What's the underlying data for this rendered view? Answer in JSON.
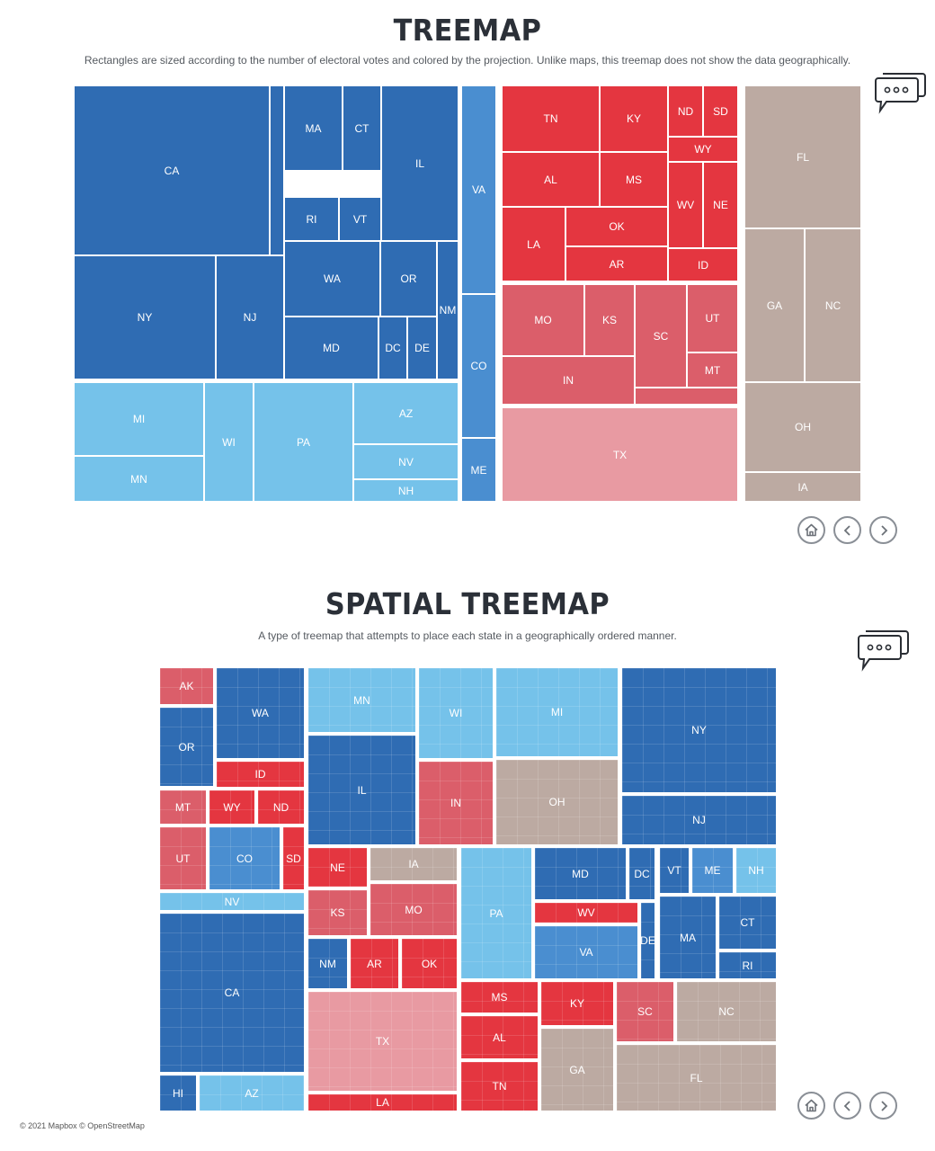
{
  "treemap": {
    "title": "TREEMAP",
    "subtitle": "Rectangles are sized according to the number of electoral votes and colored by the projection. Unlike maps, this treemap does not show the data geographically."
  },
  "spatial": {
    "title": "SPATIAL TREEMAP",
    "subtitle": "A type of treemap that attempts to place each state in a geographically ordered manner."
  },
  "footer": {
    "attribution": "© 2021 Mapbox © OpenStreetMap"
  },
  "icons": {
    "comment": "comment-bubbles-icon",
    "home": "home-icon",
    "prev": "chevron-left-icon",
    "next": "chevron-right-icon"
  },
  "colors": {
    "dark_blue": "#2f6cb3",
    "mid_blue": "#4a8ed0",
    "light_blue": "#75c2ea",
    "dark_red": "#e43640",
    "mid_red": "#db5e6a",
    "light_red": "#e89aa2",
    "tossup": "#bcaaa2"
  },
  "chart_data": [
    {
      "type": "treemap",
      "title": "TREEMAP",
      "groups": [
        {
          "color": "dark_blue",
          "items": [
            "CA",
            "NY",
            "NJ",
            "MA",
            "CT",
            "RI",
            "VT",
            "IL",
            "WA",
            "OR",
            "NM",
            "MD",
            "DC",
            "DE",
            ""
          ]
        },
        {
          "color": "light_blue",
          "items": [
            "MI",
            "MN",
            "WI",
            "PA",
            "AZ",
            "NV",
            "NH"
          ]
        },
        {
          "color": "mid_blue",
          "items": [
            "VA",
            "CO",
            "ME"
          ]
        },
        {
          "color": "dark_red",
          "items": [
            "TN",
            "KY",
            "ND",
            "SD",
            "WY",
            "AL",
            "MS",
            "WV",
            "NE",
            "LA",
            "OK",
            "AR",
            "ID"
          ]
        },
        {
          "color": "mid_red",
          "items": [
            "MO",
            "KS",
            "SC",
            "UT",
            "MT",
            "IN",
            ""
          ]
        },
        {
          "color": "light_red",
          "items": [
            "TX"
          ]
        },
        {
          "color": "tossup",
          "items": [
            "FL",
            "GA",
            "NC",
            "OH",
            "IA"
          ]
        }
      ]
    },
    {
      "type": "spatial-treemap",
      "title": "SPATIAL TREEMAP",
      "states": [
        {
          "label": "AK",
          "color": "mid_red"
        },
        {
          "label": "WA",
          "color": "dark_blue"
        },
        {
          "label": "OR",
          "color": "dark_blue"
        },
        {
          "label": "ID",
          "color": "dark_red"
        },
        {
          "label": "MT",
          "color": "mid_red"
        },
        {
          "label": "WY",
          "color": "dark_red"
        },
        {
          "label": "ND",
          "color": "dark_red"
        },
        {
          "label": "UT",
          "color": "mid_red"
        },
        {
          "label": "CO",
          "color": "mid_blue"
        },
        {
          "label": "SD",
          "color": "dark_red"
        },
        {
          "label": "NV",
          "color": "light_blue"
        },
        {
          "label": "CA",
          "color": "dark_blue"
        },
        {
          "label": "HI",
          "color": "dark_blue"
        },
        {
          "label": "AZ",
          "color": "light_blue"
        },
        {
          "label": "MN",
          "color": "light_blue"
        },
        {
          "label": "IL",
          "color": "dark_blue"
        },
        {
          "label": "WI",
          "color": "light_blue"
        },
        {
          "label": "IN",
          "color": "mid_red"
        },
        {
          "label": "MI",
          "color": "light_blue"
        },
        {
          "label": "OH",
          "color": "tossup"
        },
        {
          "label": "NY",
          "color": "dark_blue"
        },
        {
          "label": "NJ",
          "color": "dark_blue"
        },
        {
          "label": "NE",
          "color": "dark_red"
        },
        {
          "label": "IA",
          "color": "tossup"
        },
        {
          "label": "KS",
          "color": "mid_red"
        },
        {
          "label": "MO",
          "color": "mid_red"
        },
        {
          "label": "NM",
          "color": "dark_blue"
        },
        {
          "label": "AR",
          "color": "dark_red"
        },
        {
          "label": "OK",
          "color": "dark_red"
        },
        {
          "label": "TX",
          "color": "light_red"
        },
        {
          "label": "LA",
          "color": "dark_red"
        },
        {
          "label": "PA",
          "color": "light_blue"
        },
        {
          "label": "MD",
          "color": "dark_blue"
        },
        {
          "label": "DC",
          "color": "dark_blue"
        },
        {
          "label": "WV",
          "color": "dark_red"
        },
        {
          "label": "VA",
          "color": "mid_blue"
        },
        {
          "label": "DE",
          "color": "dark_blue"
        },
        {
          "label": "VT",
          "color": "dark_blue"
        },
        {
          "label": "ME",
          "color": "mid_blue"
        },
        {
          "label": "NH",
          "color": "light_blue"
        },
        {
          "label": "CT",
          "color": "dark_blue"
        },
        {
          "label": "MA",
          "color": "dark_blue"
        },
        {
          "label": "RI",
          "color": "dark_blue"
        },
        {
          "label": "MS",
          "color": "dark_red"
        },
        {
          "label": "AL",
          "color": "dark_red"
        },
        {
          "label": "TN",
          "color": "dark_red"
        },
        {
          "label": "KY",
          "color": "dark_red"
        },
        {
          "label": "GA",
          "color": "tossup"
        },
        {
          "label": "SC",
          "color": "mid_red"
        },
        {
          "label": "NC",
          "color": "tossup"
        },
        {
          "label": "FL",
          "color": "tossup"
        }
      ]
    }
  ]
}
